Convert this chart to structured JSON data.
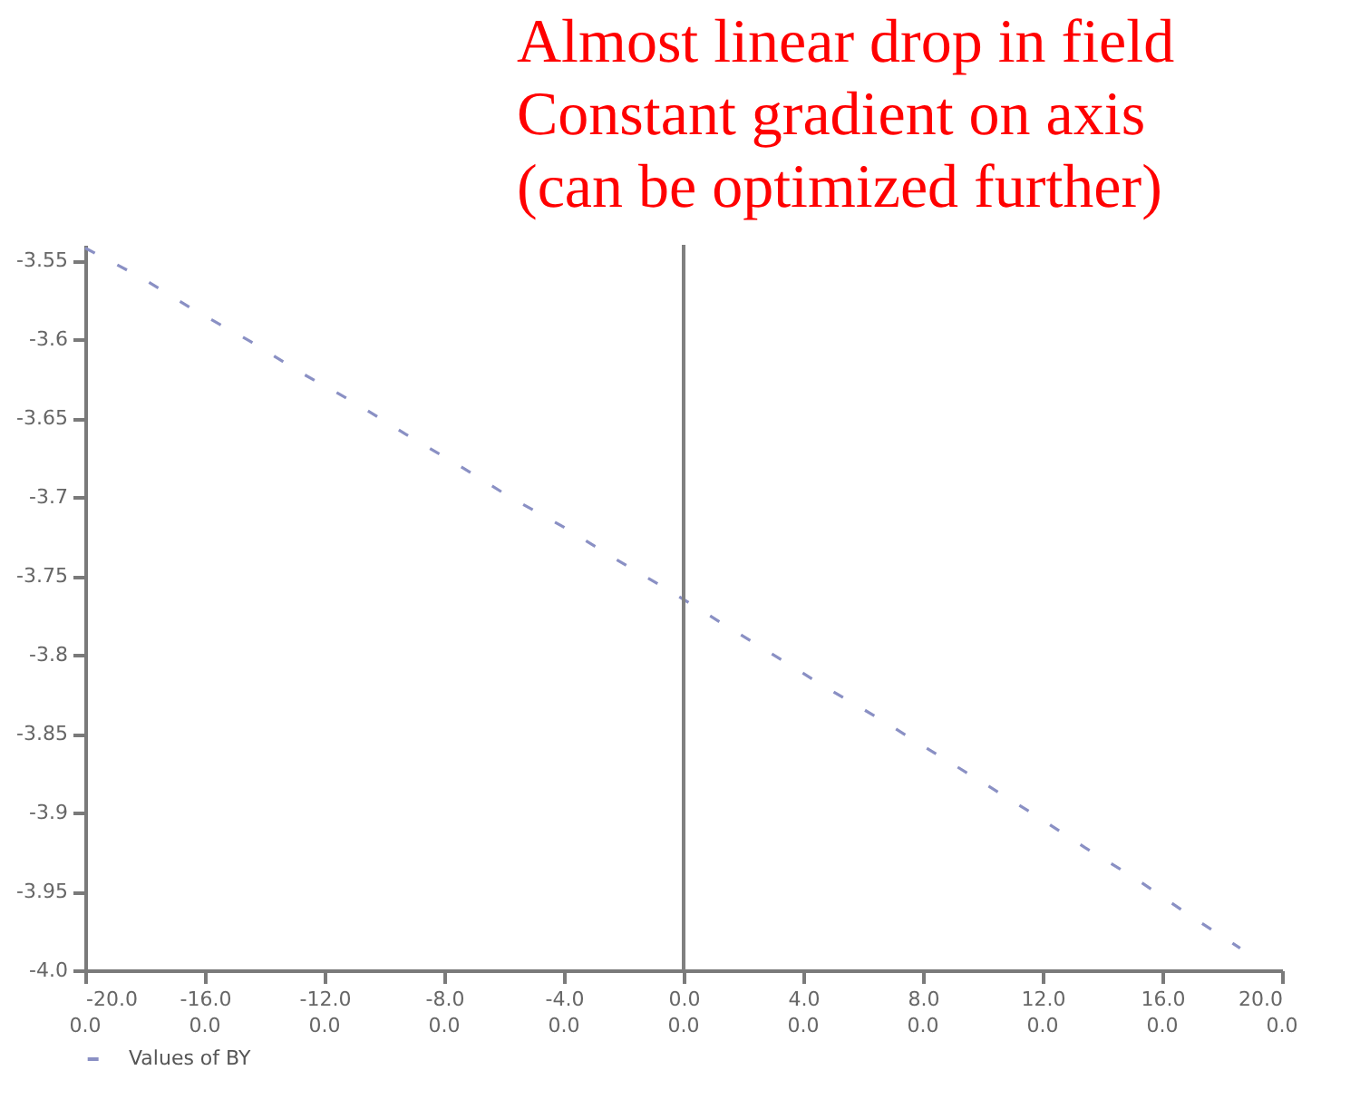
{
  "chart_data": {
    "type": "line",
    "annotations": [
      "Almost linear drop in field",
      "Constant gradient on axis",
      "(can be optimized further)",
      "0.0",
      "0.0",
      "0.0",
      "0.0",
      "0.0",
      "0.0",
      "0.0",
      "0.0",
      "0.0",
      "0.0",
      "0.0"
    ],
    "xlim": [
      -20,
      20
    ],
    "ylim": [
      -4.0,
      -3.54
    ],
    "xticks": [
      {
        "value": -20,
        "label": "-20.0"
      },
      {
        "value": -16,
        "label": "-16.0"
      },
      {
        "value": -12,
        "label": "-12.0"
      },
      {
        "value": -8,
        "label": "-8.0"
      },
      {
        "value": -4,
        "label": "-4.0"
      },
      {
        "value": 0,
        "label": "0.0"
      },
      {
        "value": 4,
        "label": "4.0"
      },
      {
        "value": 8,
        "label": "8.0"
      },
      {
        "value": 12,
        "label": "12.0"
      },
      {
        "value": 16,
        "label": "16.0"
      },
      {
        "value": 20,
        "label": "20.0"
      }
    ],
    "yticks": [
      {
        "value": -4.0,
        "label": "-4.0"
      },
      -3.95,
      -3.9,
      -3.85,
      -3.8,
      -3.75,
      -3.7,
      -3.65,
      -3.6,
      -3.55
    ],
    "series": [
      {
        "name": "Values of BY",
        "color": "#8a90c4",
        "x": [
          -20.0,
          -18.2,
          -16.3,
          -14.5,
          -12.8,
          -11.0,
          -9.3,
          -7.5,
          -5.8,
          -4.0,
          -2.3,
          -0.5,
          1.2,
          3.0,
          4.7,
          6.5,
          8.2,
          10.0,
          11.7,
          13.4,
          15.2,
          16.9,
          18.6
        ],
        "values": [
          -3.542,
          -3.56,
          -3.582,
          -3.601,
          -3.621,
          -3.64,
          -3.66,
          -3.68,
          -3.7,
          -3.719,
          -3.739,
          -3.759,
          -3.779,
          -3.8,
          -3.82,
          -3.84,
          -3.86,
          -3.881,
          -3.901,
          -3.922,
          -3.943,
          -3.965,
          -3.986
        ]
      }
    ],
    "line_style": "dashed",
    "legend": "bottom",
    "grid": false,
    "ref_lines": [
      {
        "axis": "x",
        "value": 0,
        "color": "#808080"
      }
    ]
  }
}
